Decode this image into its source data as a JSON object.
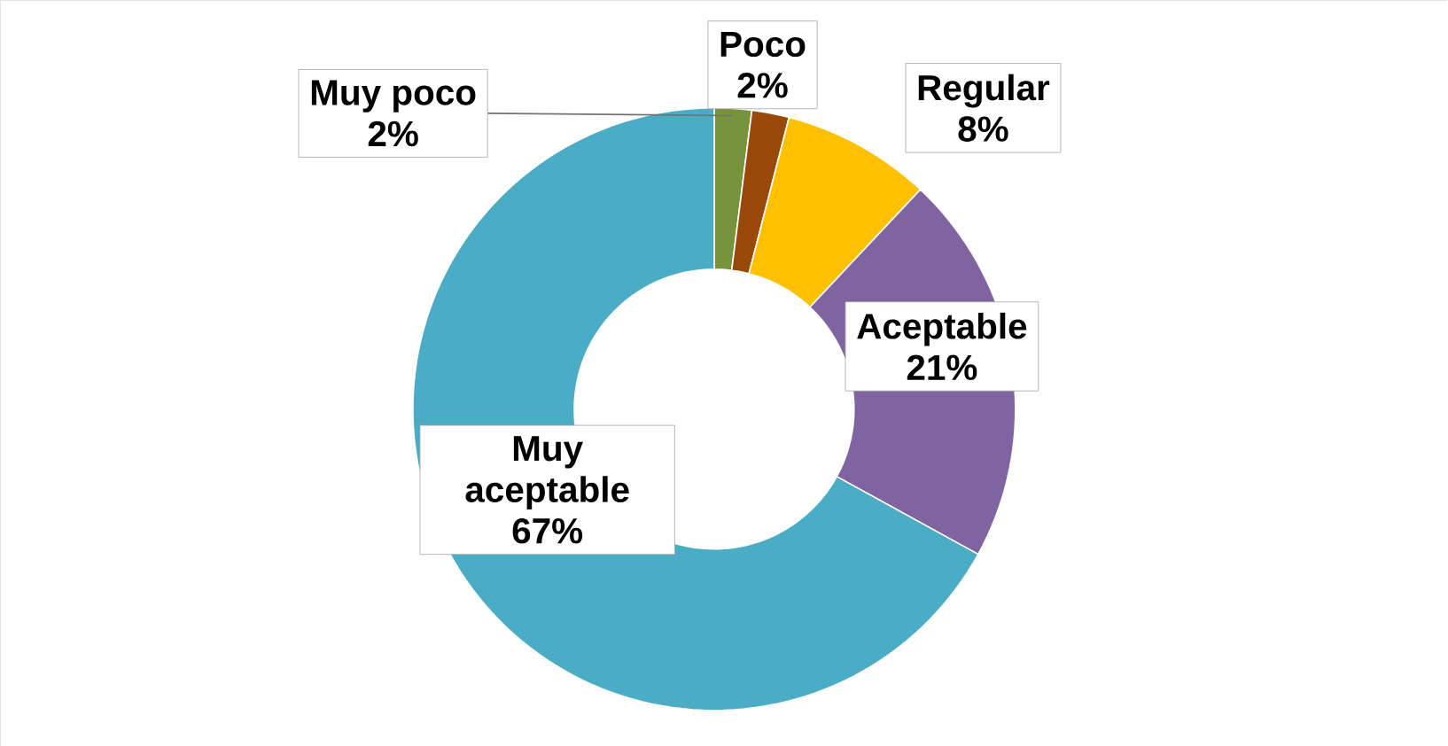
{
  "chart_data": {
    "type": "donut",
    "categories": [
      "Muy poco",
      "Poco",
      "Regular",
      "Aceptable",
      "Muy aceptable"
    ],
    "values": [
      2,
      2,
      8,
      21,
      67
    ],
    "value_labels": [
      "2%",
      "2%",
      "8%",
      "21%",
      "67%"
    ],
    "colors": [
      "#77933c",
      "#984807",
      "#ffc000",
      "#8064a2",
      "#4bacc6"
    ],
    "data_labels": true
  }
}
